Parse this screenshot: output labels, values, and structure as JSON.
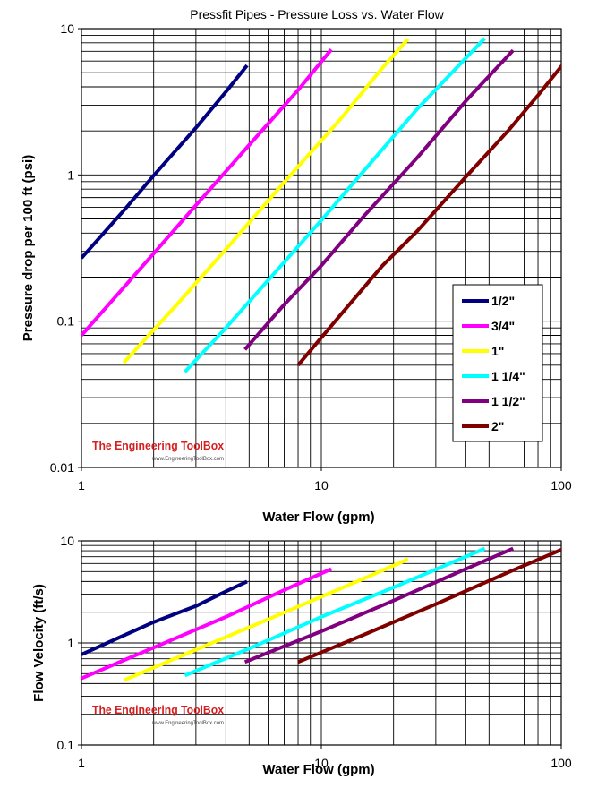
{
  "chart_data": [
    {
      "type": "line",
      "title": "Pressfit Pipes - Pressure Loss vs. Water Flow",
      "xlabel": "Water Flow (gpm)",
      "ylabel": "Pressure drop per 100 ft (psi)",
      "x_scale": "log",
      "y_scale": "log",
      "xlim": [
        1,
        100
      ],
      "ylim": [
        0.01,
        10
      ],
      "x_ticks": [
        "1",
        "10",
        "100"
      ],
      "y_ticks": [
        "0.01",
        "0.1",
        "1",
        "10"
      ],
      "grid": true,
      "legend_position": "bottom-right",
      "watermark": {
        "name": "The Engineering ToolBox",
        "url": "www.EngineeringToolBox.com"
      },
      "series": [
        {
          "name": "1/2\"",
          "color": "#000080",
          "x": [
            1.0,
            1.5,
            2.0,
            3.0,
            4.0,
            4.9
          ],
          "y": [
            0.27,
            0.57,
            0.99,
            2.1,
            3.7,
            5.6
          ]
        },
        {
          "name": "3/4\"",
          "color": "#ff00ff",
          "x": [
            1.0,
            2.0,
            3.0,
            5.0,
            8.0,
            11.0
          ],
          "y": [
            0.08,
            0.29,
            0.62,
            1.6,
            3.8,
            7.2
          ]
        },
        {
          "name": "1\"",
          "color": "#ffff00",
          "x": [
            1.5,
            2.5,
            4.0,
            7.0,
            12.0,
            18.0,
            23.0
          ],
          "y": [
            0.052,
            0.13,
            0.31,
            0.89,
            2.4,
            5.4,
            8.5
          ]
        },
        {
          "name": "1 1/4\"",
          "color": "#00ffff",
          "x": [
            2.7,
            4.0,
            6.0,
            10.0,
            16.0,
            25.0,
            35.0,
            48.0
          ],
          "y": [
            0.045,
            0.09,
            0.19,
            0.49,
            1.2,
            2.8,
            5.0,
            8.6
          ]
        },
        {
          "name": "1 1/2\"",
          "color": "#800080",
          "x": [
            4.8,
            7.0,
            10.0,
            15.0,
            25.0,
            40.0,
            63.0
          ],
          "y": [
            0.064,
            0.13,
            0.24,
            0.52,
            1.3,
            3.2,
            7.1
          ]
        },
        {
          "name": "2\"",
          "color": "#800000",
          "x": [
            8.0,
            12.0,
            18.0,
            25.0,
            40.0,
            60.0,
            80.0,
            105.0
          ],
          "y": [
            0.05,
            0.11,
            0.24,
            0.41,
            0.97,
            2.0,
            3.5,
            6.1
          ]
        }
      ]
    },
    {
      "type": "line",
      "xlabel": "Water Flow (gpm)",
      "ylabel": "Flow Velocity (ft/s)",
      "x_scale": "log",
      "y_scale": "log",
      "xlim": [
        1,
        100
      ],
      "ylim": [
        0.1,
        10
      ],
      "x_ticks": [
        "1",
        "10",
        "100"
      ],
      "y_ticks": [
        "0.1",
        "1",
        "10"
      ],
      "grid": true,
      "watermark": {
        "name": "The Engineering ToolBox",
        "url": "www.EngineeringToolBox.com"
      },
      "series": [
        {
          "color": "#000080",
          "x": [
            1.0,
            2.0,
            3.0,
            4.0,
            4.9
          ],
          "y": [
            0.77,
            1.6,
            2.3,
            3.2,
            4.0
          ]
        },
        {
          "color": "#ff00ff",
          "x": [
            1.0,
            2.0,
            4.0,
            7.0,
            11.0
          ],
          "y": [
            0.45,
            0.9,
            1.8,
            3.3,
            5.3
          ]
        },
        {
          "color": "#ffff00",
          "x": [
            1.5,
            3.0,
            6.0,
            12.0,
            23.0
          ],
          "y": [
            0.43,
            0.86,
            1.7,
            3.4,
            6.6
          ]
        },
        {
          "color": "#00ffff",
          "x": [
            2.7,
            5.0,
            10.0,
            20.0,
            48.0
          ],
          "y": [
            0.48,
            0.88,
            1.8,
            3.5,
            8.4
          ]
        },
        {
          "color": "#800080",
          "x": [
            4.8,
            10.0,
            20.0,
            40.0,
            63.0
          ],
          "y": [
            0.65,
            1.3,
            2.6,
            5.3,
            8.4
          ]
        },
        {
          "color": "#800000",
          "x": [
            8.0,
            15.0,
            30.0,
            60.0,
            105.0
          ],
          "y": [
            0.65,
            1.2,
            2.4,
            4.9,
            8.6
          ]
        }
      ]
    }
  ]
}
